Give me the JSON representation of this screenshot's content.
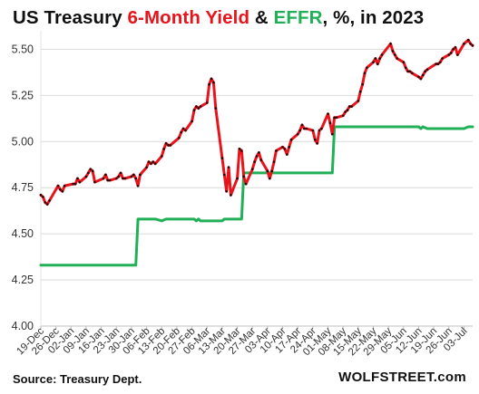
{
  "title": {
    "part1": "US Treasury ",
    "part2": "6-Month Yield",
    "part3": " & ",
    "part4": "EFFR",
    "part5": ", %, in 2023",
    "color_treasury": "#e8141c",
    "color_effr": "#21b058"
  },
  "footer": {
    "source": "Source: Treasury Dept.",
    "brand": "WOLFSTREET.com"
  },
  "chart_data": {
    "type": "line",
    "title": "US Treasury 6-Month Yield & EFFR, %, in 2023",
    "ylim": [
      4.0,
      5.6
    ],
    "yticks": [
      "4.00",
      "4.25",
      "4.50",
      "4.75",
      "5.00",
      "5.25",
      "5.50"
    ],
    "xticks": [
      "19-Dec",
      "26-Dec",
      "02-Jan",
      "09-Jan",
      "16-Jan",
      "23-Jan",
      "30-Jan",
      "06-Feb",
      "13-Feb",
      "20-Feb",
      "27-Feb",
      "06-Mar",
      "13-Mar",
      "20-Mar",
      "27-Mar",
      "03-Apr",
      "10-Apr",
      "17-Apr",
      "24-Apr",
      "01-May",
      "08-May",
      "15-May",
      "22-May",
      "29-May",
      "05-Jun",
      "12-Jun",
      "19-Jun",
      "26-Jun",
      "03-Jul"
    ],
    "x_start": "2022-12-19",
    "x_end": "2023-07-07",
    "grid": "horizontal",
    "series": [
      {
        "color": "#e8141c",
        "points": [
          [
            "2022-12-19",
            4.71
          ],
          [
            "2022-12-20",
            4.7
          ],
          [
            "2022-12-21",
            4.67
          ],
          [
            "2022-12-22",
            4.66
          ],
          [
            "2022-12-23",
            4.68
          ],
          [
            "2022-12-27",
            4.76
          ],
          [
            "2022-12-28",
            4.74
          ],
          [
            "2022-12-29",
            4.73
          ],
          [
            "2022-12-30",
            4.76
          ],
          [
            "2023-01-03",
            4.77
          ],
          [
            "2023-01-04",
            4.77
          ],
          [
            "2023-01-05",
            4.8
          ],
          [
            "2023-01-06",
            4.78
          ],
          [
            "2023-01-09",
            4.81
          ],
          [
            "2023-01-10",
            4.83
          ],
          [
            "2023-01-11",
            4.85
          ],
          [
            "2023-01-12",
            4.84
          ],
          [
            "2023-01-13",
            4.78
          ],
          [
            "2023-01-17",
            4.8
          ],
          [
            "2023-01-18",
            4.82
          ],
          [
            "2023-01-19",
            4.79
          ],
          [
            "2023-01-20",
            4.79
          ],
          [
            "2023-01-23",
            4.8
          ],
          [
            "2023-01-24",
            4.81
          ],
          [
            "2023-01-25",
            4.83
          ],
          [
            "2023-01-26",
            4.8
          ],
          [
            "2023-01-27",
            4.8
          ],
          [
            "2023-01-30",
            4.81
          ],
          [
            "2023-01-31",
            4.82
          ],
          [
            "2023-02-01",
            4.8
          ],
          [
            "2023-02-02",
            4.76
          ],
          [
            "2023-02-03",
            4.82
          ],
          [
            "2023-02-06",
            4.86
          ],
          [
            "2023-02-07",
            4.89
          ],
          [
            "2023-02-08",
            4.88
          ],
          [
            "2023-02-09",
            4.89
          ],
          [
            "2023-02-10",
            4.88
          ],
          [
            "2023-02-13",
            4.92
          ],
          [
            "2023-02-14",
            4.96
          ],
          [
            "2023-02-15",
            4.99
          ],
          [
            "2023-02-16",
            4.98
          ],
          [
            "2023-02-17",
            4.98
          ],
          [
            "2023-02-21",
            5.02
          ],
          [
            "2023-02-22",
            5.05
          ],
          [
            "2023-02-23",
            5.07
          ],
          [
            "2023-02-24",
            5.06
          ],
          [
            "2023-02-27",
            5.11
          ],
          [
            "2023-02-28",
            5.17
          ],
          [
            "2023-03-01",
            5.19
          ],
          [
            "2023-03-02",
            5.18
          ],
          [
            "2023-03-03",
            5.19
          ],
          [
            "2023-03-06",
            5.21
          ],
          [
            "2023-03-07",
            5.31
          ],
          [
            "2023-03-08",
            5.34
          ],
          [
            "2023-03-09",
            5.32
          ],
          [
            "2023-03-10",
            5.18
          ],
          [
            "2023-03-13",
            4.91
          ],
          [
            "2023-03-14",
            4.82
          ],
          [
            "2023-03-15",
            4.73
          ],
          [
            "2023-03-16",
            4.86
          ],
          [
            "2023-03-17",
            4.71
          ],
          [
            "2023-03-20",
            4.8
          ],
          [
            "2023-03-21",
            4.96
          ],
          [
            "2023-03-22",
            4.95
          ],
          [
            "2023-03-23",
            4.81
          ],
          [
            "2023-03-24",
            4.77
          ],
          [
            "2023-03-27",
            4.85
          ],
          [
            "2023-03-28",
            4.89
          ],
          [
            "2023-03-29",
            4.92
          ],
          [
            "2023-03-30",
            4.94
          ],
          [
            "2023-03-31",
            4.9
          ],
          [
            "2023-04-03",
            4.84
          ],
          [
            "2023-04-04",
            4.8
          ],
          [
            "2023-04-05",
            4.84
          ],
          [
            "2023-04-06",
            4.89
          ],
          [
            "2023-04-07",
            4.95
          ],
          [
            "2023-04-10",
            4.97
          ],
          [
            "2023-04-11",
            4.96
          ],
          [
            "2023-04-12",
            4.93
          ],
          [
            "2023-04-13",
            4.97
          ],
          [
            "2023-04-14",
            5.01
          ],
          [
            "2023-04-17",
            5.04
          ],
          [
            "2023-04-18",
            5.06
          ],
          [
            "2023-04-19",
            5.09
          ],
          [
            "2023-04-20",
            5.07
          ],
          [
            "2023-04-21",
            5.07
          ],
          [
            "2023-04-24",
            5.06
          ],
          [
            "2023-04-25",
            5.01
          ],
          [
            "2023-04-26",
            4.99
          ],
          [
            "2023-04-27",
            5.06
          ],
          [
            "2023-04-28",
            5.07
          ],
          [
            "2023-05-01",
            5.15
          ],
          [
            "2023-05-02",
            5.1
          ],
          [
            "2023-05-03",
            5.04
          ],
          [
            "2023-05-04",
            5.13
          ],
          [
            "2023-05-05",
            5.13
          ],
          [
            "2023-05-08",
            5.14
          ],
          [
            "2023-05-09",
            5.16
          ],
          [
            "2023-05-10",
            5.17
          ],
          [
            "2023-05-11",
            5.19
          ],
          [
            "2023-05-12",
            5.19
          ],
          [
            "2023-05-15",
            5.22
          ],
          [
            "2023-05-16",
            5.27
          ],
          [
            "2023-05-17",
            5.31
          ],
          [
            "2023-05-18",
            5.37
          ],
          [
            "2023-05-19",
            5.4
          ],
          [
            "2023-05-22",
            5.43
          ],
          [
            "2023-05-23",
            5.45
          ],
          [
            "2023-05-24",
            5.42
          ],
          [
            "2023-05-25",
            5.45
          ],
          [
            "2023-05-26",
            5.47
          ],
          [
            "2023-05-30",
            5.53
          ],
          [
            "2023-05-31",
            5.49
          ],
          [
            "2023-06-01",
            5.47
          ],
          [
            "2023-06-02",
            5.45
          ],
          [
            "2023-06-05",
            5.43
          ],
          [
            "2023-06-06",
            5.4
          ],
          [
            "2023-06-07",
            5.38
          ],
          [
            "2023-06-08",
            5.38
          ],
          [
            "2023-06-09",
            5.37
          ],
          [
            "2023-06-12",
            5.35
          ],
          [
            "2023-06-13",
            5.34
          ],
          [
            "2023-06-14",
            5.36
          ],
          [
            "2023-06-15",
            5.38
          ],
          [
            "2023-06-16",
            5.39
          ],
          [
            "2023-06-20",
            5.42
          ],
          [
            "2023-06-21",
            5.42
          ],
          [
            "2023-06-22",
            5.43
          ],
          [
            "2023-06-23",
            5.45
          ],
          [
            "2023-06-26",
            5.47
          ],
          [
            "2023-06-27",
            5.48
          ],
          [
            "2023-06-28",
            5.5
          ],
          [
            "2023-06-29",
            5.51
          ],
          [
            "2023-06-30",
            5.47
          ],
          [
            "2023-07-03",
            5.53
          ],
          [
            "2023-07-05",
            5.55
          ],
          [
            "2023-07-06",
            5.53
          ],
          [
            "2023-07-07",
            5.52
          ]
        ]
      },
      {
        "color": "#21b058",
        "points": [
          [
            "2022-12-19",
            4.33
          ],
          [
            "2023-02-01",
            4.33
          ],
          [
            "2023-02-02",
            4.58
          ],
          [
            "2023-02-10",
            4.58
          ],
          [
            "2023-02-13",
            4.57
          ],
          [
            "2023-02-15",
            4.58
          ],
          [
            "2023-02-28",
            4.58
          ],
          [
            "2023-03-01",
            4.57
          ],
          [
            "2023-03-02",
            4.58
          ],
          [
            "2023-03-03",
            4.57
          ],
          [
            "2023-03-13",
            4.57
          ],
          [
            "2023-03-14",
            4.58
          ],
          [
            "2023-03-22",
            4.58
          ],
          [
            "2023-03-23",
            4.83
          ],
          [
            "2023-05-03",
            4.83
          ],
          [
            "2023-05-04",
            5.08
          ],
          [
            "2023-06-12",
            5.08
          ],
          [
            "2023-06-13",
            5.07
          ],
          [
            "2023-06-14",
            5.08
          ],
          [
            "2023-06-16",
            5.07
          ],
          [
            "2023-07-03",
            5.07
          ],
          [
            "2023-07-05",
            5.08
          ],
          [
            "2023-07-07",
            5.08
          ]
        ]
      }
    ]
  }
}
